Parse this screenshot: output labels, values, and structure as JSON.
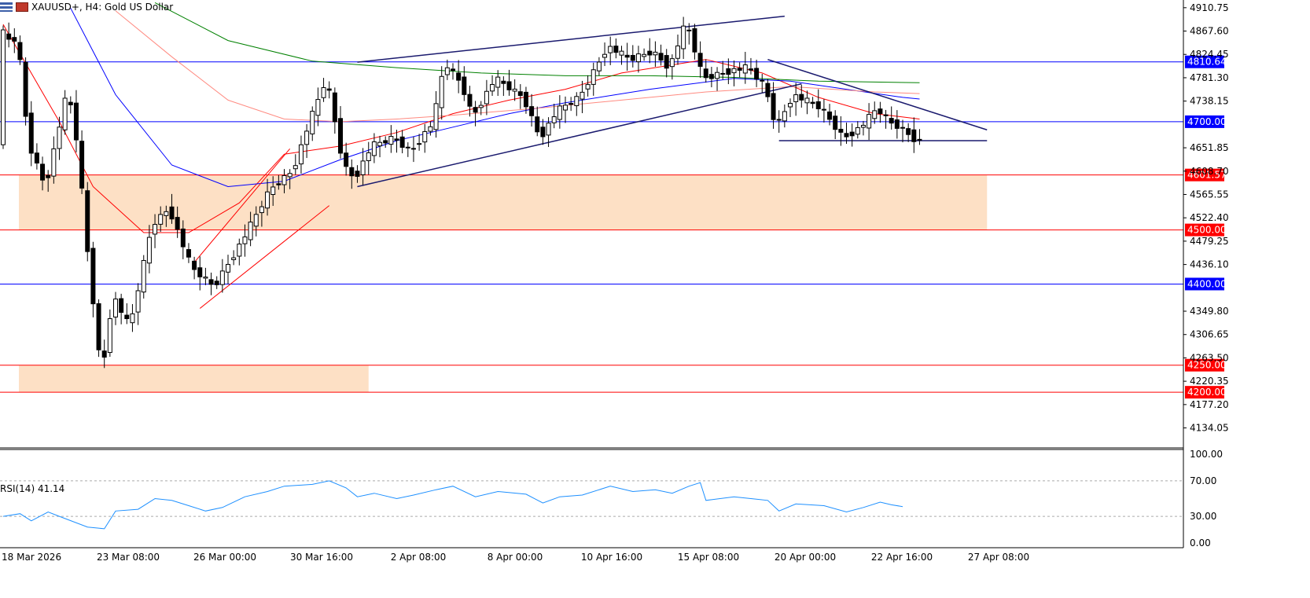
{
  "header": {
    "symbol_title": "XAUUSD+, H4:  Gold US Dollar",
    "menu_icon": "chart-menu-icon",
    "symbol_icon": "symbol-flag-icon"
  },
  "rsi": {
    "title": "RSI(14) 41.14",
    "levels": [
      70,
      30
    ],
    "ticks": [
      "100.00",
      "70.00",
      "30.00",
      "0.00"
    ]
  },
  "colors": {
    "bull": "#ffffff",
    "bear": "#000000",
    "ma_red": "#ff0000",
    "ma_blue": "#0000ff",
    "ma_pink": "#ff8a80",
    "ma_green": "#008000",
    "zone": "#fde0c5",
    "rsi": "#1e90ff",
    "hline_blue": "#0000ff",
    "hline_red": "#ff0000",
    "tag_blue": "#0000ff",
    "tag_red": "#ff0000"
  },
  "chart_data": {
    "type": "candlestick",
    "title": "XAUUSD+, H4:  Gold US Dollar",
    "price_ticks": [
      "4910.75",
      "4867.60",
      "4824.45",
      "4781.30",
      "4738.15",
      "4651.85",
      "4608.70",
      "4565.55",
      "4522.40",
      "4479.25",
      "4436.10",
      "4349.80",
      "4306.65",
      "4263.50",
      "4220.35",
      "4177.20",
      "4134.05"
    ],
    "time_labels": [
      "18 Mar 2026",
      "23 Mar 08:00",
      "26 Mar 00:00",
      "30 Mar 16:00",
      "2 Apr 08:00",
      "8 Apr 00:00",
      "10 Apr 16:00",
      "15 Apr 08:00",
      "20 Apr 00:00",
      "22 Apr 16:00",
      "27 Apr 08:00"
    ],
    "ylim": [
      4100,
      4925
    ],
    "levels": [
      {
        "price": 4810.64,
        "label": "4810.64",
        "kind": "blue"
      },
      {
        "price": 4700.0,
        "label": "4700.00",
        "kind": "blue"
      },
      {
        "price": 4601.57,
        "label": "4601.57",
        "kind": "red"
      },
      {
        "price": 4500.0,
        "label": "4500.00",
        "kind": "red"
      },
      {
        "price": 4400.0,
        "label": "4400.00",
        "kind": "blue"
      },
      {
        "price": 4250.0,
        "label": "4250.00",
        "kind": "red"
      },
      {
        "price": 4200.0,
        "label": "4200.00",
        "kind": "red"
      }
    ],
    "zones": [
      {
        "from_bar": 0,
        "to_bar": 175,
        "low": 4500,
        "high": 4601.57
      },
      {
        "from_bar": 0,
        "to_bar": 65,
        "low": 4200,
        "high": 4250
      }
    ],
    "keypoints": [
      [
        0,
        4870
      ],
      [
        2,
        4845
      ],
      [
        3,
        4860
      ],
      [
        5,
        4660
      ],
      [
        8,
        4580
      ],
      [
        12,
        4760
      ],
      [
        14,
        4640
      ],
      [
        15,
        4505
      ],
      [
        16,
        4415
      ],
      [
        18,
        4228
      ],
      [
        20,
        4380
      ],
      [
        23,
        4320
      ],
      [
        27,
        4510
      ],
      [
        30,
        4540
      ],
      [
        34,
        4430
      ],
      [
        38,
        4395
      ],
      [
        43,
        4480
      ],
      [
        48,
        4575
      ],
      [
        52,
        4610
      ],
      [
        55,
        4700
      ],
      [
        58,
        4780
      ],
      [
        61,
        4620
      ],
      [
        63,
        4595
      ],
      [
        66,
        4655
      ],
      [
        70,
        4670
      ],
      [
        73,
        4645
      ],
      [
        77,
        4700
      ],
      [
        79,
        4810
      ],
      [
        82,
        4770
      ],
      [
        84,
        4710
      ],
      [
        88,
        4780
      ],
      [
        93,
        4745
      ],
      [
        96,
        4670
      ],
      [
        99,
        4720
      ],
      [
        103,
        4745
      ],
      [
        108,
        4840
      ],
      [
        112,
        4815
      ],
      [
        116,
        4830
      ],
      [
        119,
        4800
      ],
      [
        122,
        4885
      ],
      [
        125,
        4780
      ],
      [
        130,
        4795
      ],
      [
        133,
        4800
      ],
      [
        136,
        4765
      ],
      [
        138,
        4690
      ],
      [
        141,
        4750
      ],
      [
        146,
        4725
      ],
      [
        150,
        4670
      ],
      [
        153,
        4690
      ],
      [
        156,
        4725
      ],
      [
        158,
        4700
      ],
      [
        160,
        4690
      ],
      [
        163,
        4665
      ]
    ],
    "ma_series": [
      {
        "name": "red",
        "points": [
          [
            0,
            4880
          ],
          [
            10,
            4700
          ],
          [
            16,
            4580
          ],
          [
            25,
            4495
          ],
          [
            33,
            4495
          ],
          [
            42,
            4550
          ],
          [
            50,
            4640
          ],
          [
            60,
            4655
          ],
          [
            70,
            4680
          ],
          [
            80,
            4715
          ],
          [
            90,
            4740
          ],
          [
            100,
            4760
          ],
          [
            110,
            4790
          ],
          [
            125,
            4815
          ],
          [
            135,
            4790
          ],
          [
            145,
            4745
          ],
          [
            155,
            4715
          ],
          [
            163,
            4705
          ]
        ]
      },
      {
        "name": "blue",
        "points": [
          [
            12,
            4910
          ],
          [
            20,
            4750
          ],
          [
            30,
            4620
          ],
          [
            40,
            4580
          ],
          [
            50,
            4590
          ],
          [
            60,
            4630
          ],
          [
            70,
            4665
          ],
          [
            80,
            4690
          ],
          [
            90,
            4715
          ],
          [
            100,
            4735
          ],
          [
            115,
            4760
          ],
          [
            130,
            4780
          ],
          [
            140,
            4775
          ],
          [
            150,
            4760
          ],
          [
            160,
            4745
          ],
          [
            163,
            4742
          ]
        ]
      },
      {
        "name": "pink",
        "points": [
          [
            20,
            4905
          ],
          [
            30,
            4820
          ],
          [
            40,
            4740
          ],
          [
            50,
            4705
          ],
          [
            60,
            4700
          ],
          [
            70,
            4705
          ],
          [
            80,
            4712
          ],
          [
            95,
            4725
          ],
          [
            110,
            4740
          ],
          [
            125,
            4755
          ],
          [
            140,
            4765
          ],
          [
            155,
            4755
          ],
          [
            163,
            4752
          ]
        ]
      },
      {
        "name": "green",
        "points": [
          [
            27,
            4920
          ],
          [
            40,
            4850
          ],
          [
            55,
            4812
          ],
          [
            70,
            4800
          ],
          [
            85,
            4790
          ],
          [
            100,
            4785
          ],
          [
            115,
            4785
          ],
          [
            130,
            4782
          ],
          [
            145,
            4775
          ],
          [
            163,
            4772
          ]
        ]
      }
    ],
    "trendlines": [
      {
        "color": "red",
        "from": [
          35,
          4355
        ],
        "to": [
          58,
          4545
        ]
      },
      {
        "color": "red",
        "from": [
          34,
          4440
        ],
        "to": [
          51,
          4650
        ]
      },
      {
        "color": "navy",
        "from": [
          63,
          4580
        ],
        "to": [
          142,
          4770
        ]
      },
      {
        "color": "navy",
        "from": [
          63,
          4810
        ],
        "to": [
          139,
          4895
        ]
      },
      {
        "color": "navy",
        "from": [
          136,
          4815
        ],
        "to": [
          175,
          4685
        ]
      },
      {
        "color": "navy",
        "from": [
          138,
          4665
        ],
        "to": [
          175,
          4665
        ]
      }
    ],
    "rsi_points": [
      [
        0,
        30
      ],
      [
        3,
        33
      ],
      [
        5,
        25
      ],
      [
        8,
        35
      ],
      [
        10,
        30
      ],
      [
        15,
        18
      ],
      [
        18,
        16
      ],
      [
        20,
        36
      ],
      [
        24,
        38
      ],
      [
        27,
        50
      ],
      [
        30,
        48
      ],
      [
        33,
        42
      ],
      [
        36,
        36
      ],
      [
        39,
        40
      ],
      [
        43,
        52
      ],
      [
        47,
        58
      ],
      [
        50,
        64
      ],
      [
        55,
        66
      ],
      [
        58,
        70
      ],
      [
        61,
        62
      ],
      [
        63,
        52
      ],
      [
        66,
        56
      ],
      [
        70,
        50
      ],
      [
        73,
        54
      ],
      [
        77,
        60
      ],
      [
        80,
        64
      ],
      [
        84,
        52
      ],
      [
        88,
        58
      ],
      [
        93,
        55
      ],
      [
        96,
        45
      ],
      [
        99,
        52
      ],
      [
        103,
        54
      ],
      [
        108,
        64
      ],
      [
        112,
        58
      ],
      [
        116,
        60
      ],
      [
        119,
        56
      ],
      [
        122,
        64
      ],
      [
        124,
        68
      ],
      [
        125,
        48
      ],
      [
        130,
        52
      ],
      [
        133,
        50
      ],
      [
        136,
        48
      ],
      [
        138,
        36
      ],
      [
        141,
        44
      ],
      [
        146,
        42
      ],
      [
        150,
        35
      ],
      [
        153,
        40
      ],
      [
        156,
        46
      ],
      [
        158,
        43
      ],
      [
        160,
        41
      ]
    ]
  }
}
